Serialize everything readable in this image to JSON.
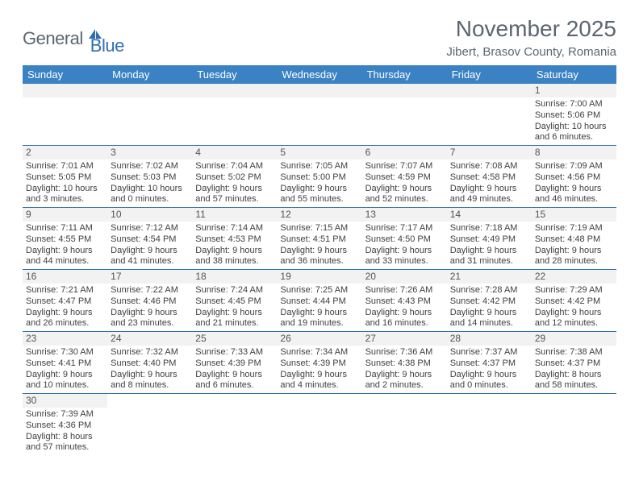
{
  "branding": {
    "logo_part1": "General",
    "logo_part2": "Blue",
    "logo_color1": "#5c6670",
    "logo_color2": "#2f6fb0"
  },
  "header": {
    "title": "November 2025",
    "location": "Jibert, Brasov County, Romania"
  },
  "calendar": {
    "weekday_bg": "#3a82c4",
    "weekday_fg": "#ffffff",
    "daynum_bg": "#f2f2f2",
    "divider_color": "#2f6fb0",
    "weekdays": [
      "Sunday",
      "Monday",
      "Tuesday",
      "Wednesday",
      "Thursday",
      "Friday",
      "Saturday"
    ],
    "first_weekday_index": 6,
    "days": [
      {
        "n": "1",
        "sunrise": "7:00 AM",
        "sunset": "5:06 PM",
        "daylight": "10 hours and 6 minutes."
      },
      {
        "n": "2",
        "sunrise": "7:01 AM",
        "sunset": "5:05 PM",
        "daylight": "10 hours and 3 minutes."
      },
      {
        "n": "3",
        "sunrise": "7:02 AM",
        "sunset": "5:03 PM",
        "daylight": "10 hours and 0 minutes."
      },
      {
        "n": "4",
        "sunrise": "7:04 AM",
        "sunset": "5:02 PM",
        "daylight": "9 hours and 57 minutes."
      },
      {
        "n": "5",
        "sunrise": "7:05 AM",
        "sunset": "5:00 PM",
        "daylight": "9 hours and 55 minutes."
      },
      {
        "n": "6",
        "sunrise": "7:07 AM",
        "sunset": "4:59 PM",
        "daylight": "9 hours and 52 minutes."
      },
      {
        "n": "7",
        "sunrise": "7:08 AM",
        "sunset": "4:58 PM",
        "daylight": "9 hours and 49 minutes."
      },
      {
        "n": "8",
        "sunrise": "7:09 AM",
        "sunset": "4:56 PM",
        "daylight": "9 hours and 46 minutes."
      },
      {
        "n": "9",
        "sunrise": "7:11 AM",
        "sunset": "4:55 PM",
        "daylight": "9 hours and 44 minutes."
      },
      {
        "n": "10",
        "sunrise": "7:12 AM",
        "sunset": "4:54 PM",
        "daylight": "9 hours and 41 minutes."
      },
      {
        "n": "11",
        "sunrise": "7:14 AM",
        "sunset": "4:53 PM",
        "daylight": "9 hours and 38 minutes."
      },
      {
        "n": "12",
        "sunrise": "7:15 AM",
        "sunset": "4:51 PM",
        "daylight": "9 hours and 36 minutes."
      },
      {
        "n": "13",
        "sunrise": "7:17 AM",
        "sunset": "4:50 PM",
        "daylight": "9 hours and 33 minutes."
      },
      {
        "n": "14",
        "sunrise": "7:18 AM",
        "sunset": "4:49 PM",
        "daylight": "9 hours and 31 minutes."
      },
      {
        "n": "15",
        "sunrise": "7:19 AM",
        "sunset": "4:48 PM",
        "daylight": "9 hours and 28 minutes."
      },
      {
        "n": "16",
        "sunrise": "7:21 AM",
        "sunset": "4:47 PM",
        "daylight": "9 hours and 26 minutes."
      },
      {
        "n": "17",
        "sunrise": "7:22 AM",
        "sunset": "4:46 PM",
        "daylight": "9 hours and 23 minutes."
      },
      {
        "n": "18",
        "sunrise": "7:24 AM",
        "sunset": "4:45 PM",
        "daylight": "9 hours and 21 minutes."
      },
      {
        "n": "19",
        "sunrise": "7:25 AM",
        "sunset": "4:44 PM",
        "daylight": "9 hours and 19 minutes."
      },
      {
        "n": "20",
        "sunrise": "7:26 AM",
        "sunset": "4:43 PM",
        "daylight": "9 hours and 16 minutes."
      },
      {
        "n": "21",
        "sunrise": "7:28 AM",
        "sunset": "4:42 PM",
        "daylight": "9 hours and 14 minutes."
      },
      {
        "n": "22",
        "sunrise": "7:29 AM",
        "sunset": "4:42 PM",
        "daylight": "9 hours and 12 minutes."
      },
      {
        "n": "23",
        "sunrise": "7:30 AM",
        "sunset": "4:41 PM",
        "daylight": "9 hours and 10 minutes."
      },
      {
        "n": "24",
        "sunrise": "7:32 AM",
        "sunset": "4:40 PM",
        "daylight": "9 hours and 8 minutes."
      },
      {
        "n": "25",
        "sunrise": "7:33 AM",
        "sunset": "4:39 PM",
        "daylight": "9 hours and 6 minutes."
      },
      {
        "n": "26",
        "sunrise": "7:34 AM",
        "sunset": "4:39 PM",
        "daylight": "9 hours and 4 minutes."
      },
      {
        "n": "27",
        "sunrise": "7:36 AM",
        "sunset": "4:38 PM",
        "daylight": "9 hours and 2 minutes."
      },
      {
        "n": "28",
        "sunrise": "7:37 AM",
        "sunset": "4:37 PM",
        "daylight": "9 hours and 0 minutes."
      },
      {
        "n": "29",
        "sunrise": "7:38 AM",
        "sunset": "4:37 PM",
        "daylight": "8 hours and 58 minutes."
      },
      {
        "n": "30",
        "sunrise": "7:39 AM",
        "sunset": "4:36 PM",
        "daylight": "8 hours and 57 minutes."
      }
    ]
  }
}
